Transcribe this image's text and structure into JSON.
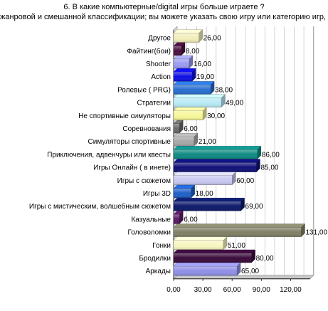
{
  "chart_data": {
    "type": "bar",
    "orientation": "horizontal",
    "title_lines": [
      "6. В какие компьютерные/digital игры больше играете ?",
      "жанровой и смешанной классификации; вы можете указать свою игру или категорию игр, в к"
    ],
    "categories": [
      "Другое",
      "Файтинг(бои)",
      "Shooter",
      "Action",
      "Ролевые ( PRG)",
      "Стратегии",
      "Не спортивные симуляторы",
      "Соревнования",
      "Симуляторы спортивные",
      "Приключения, адвенчуры или квесты",
      "Игры Онлайн ( в инете)",
      "Игры с сюжетом",
      "Игры 3D",
      "Игры с мистическим, волшебным сюжетом",
      "Казуальные",
      "Головоломки",
      "Гонки",
      "Бродилки",
      "Аркады"
    ],
    "values": [
      26,
      8,
      16,
      19,
      38,
      49,
      30,
      6,
      21,
      86,
      85,
      60,
      18,
      69,
      6,
      131,
      51,
      80,
      65
    ],
    "value_labels": [
      "26,00",
      "8,00",
      "16,00",
      "19,00",
      "38,00",
      "49,00",
      "30,00",
      "6,00",
      "21,00",
      "86,00",
      "85,00",
      "60,00",
      "18,00",
      "69,00",
      "6,00",
      "131,00",
      "51,00",
      "80,00",
      "65,00"
    ],
    "colors": [
      "#f2eebc",
      "#4a1040",
      "#9c9cf2",
      "#0f0fe6",
      "#2a6fd0",
      "#b8eaf5",
      "#f7f79a",
      "#6a6a6a",
      "#a8a8a8",
      "#0e8a82",
      "#101078",
      "#c8c8f2",
      "#2060c8",
      "#0c1a6a",
      "#5a1a68",
      "#808066",
      "#f7f7c0",
      "#3a0a3a",
      "#9090e8"
    ],
    "xaxis": {
      "ticks": [
        0,
        30,
        60,
        90,
        120
      ],
      "tick_labels": [
        "0,00",
        "30,00",
        "60,00",
        "90,00",
        "120,00"
      ],
      "range": [
        0,
        140
      ]
    },
    "grid": true,
    "legend": "none"
  }
}
